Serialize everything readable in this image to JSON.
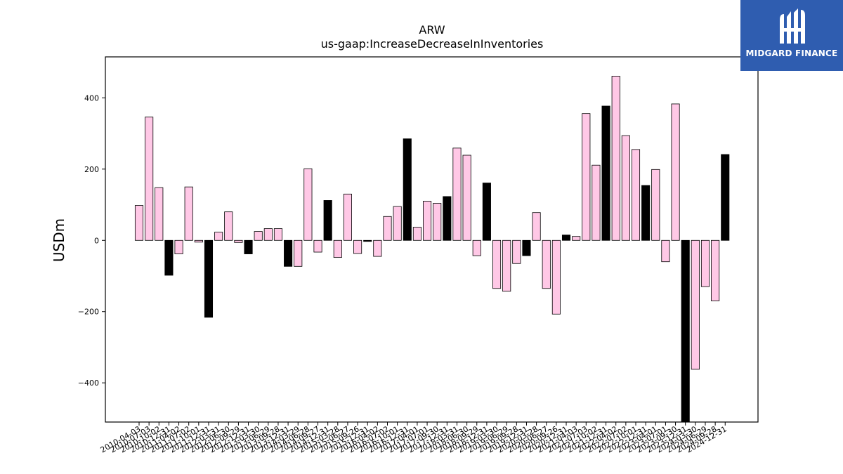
{
  "logo": {
    "text": "MIDGARD FINANCE",
    "icon": "midgard-m-logo-icon",
    "background": "#2f5db0"
  },
  "colors": {
    "positive": "#ffc8e6",
    "negative": "#ffc8e6",
    "highlight": "#000000",
    "edge": "#000000"
  },
  "chart_data": {
    "type": "bar",
    "title": "ARW",
    "subtitle": "us-gaap:IncreaseDecreaseInInventories",
    "xlabel": "",
    "ylabel": "USDm",
    "ylim": [
      -510,
      515
    ],
    "yticks": [
      -400,
      -200,
      0,
      200,
      400
    ],
    "grid": false,
    "categories": [
      "2010-04-03",
      "2010-07-03",
      "2010-10-02",
      "2010-12-31",
      "2011-04-02",
      "2011-07-02",
      "2011-10-01",
      "2011-12-31",
      "2012-03-31",
      "2012-06-30",
      "2012-09-29",
      "2012-12-31",
      "2013-03-30",
      "2013-06-29",
      "2013-09-28",
      "2013-12-31",
      "2014-03-29",
      "2014-06-28",
      "2014-09-27",
      "2014-12-31",
      "2015-03-28",
      "2015-06-27",
      "2015-09-26",
      "2015-12-31",
      "2016-04-02",
      "2016-07-02",
      "2016-10-01",
      "2016-12-31",
      "2017-04-01",
      "2017-07-01",
      "2017-09-30",
      "2017-12-31",
      "2018-03-31",
      "2018-06-30",
      "2018-09-29",
      "2018-12-31",
      "2019-03-30",
      "2019-06-29",
      "2019-09-28",
      "2019-12-31",
      "2020-03-28",
      "2020-06-27",
      "2020-09-26",
      "2020-12-31",
      "2021-04-03",
      "2021-07-03",
      "2021-10-02",
      "2021-12-31",
      "2022-04-02",
      "2022-07-02",
      "2022-10-01",
      "2022-12-31",
      "2023-04-01",
      "2023-07-01",
      "2023-09-30",
      "2023-12-31",
      "2024-03-30",
      "2024-06-29",
      "2024-09-28",
      "2024-12-31"
    ],
    "values": [
      98,
      346,
      148,
      -98,
      -38,
      150,
      -5,
      -216,
      23,
      80,
      -6,
      -38,
      25,
      33,
      33,
      -73,
      -73,
      201,
      -33,
      112,
      -48,
      130,
      -37,
      -3,
      -45,
      67,
      95,
      285,
      37,
      110,
      104,
      123,
      259,
      239,
      -43,
      161,
      -135,
      -143,
      -65,
      -43,
      78,
      -135,
      -207,
      15,
      11,
      356,
      211,
      377,
      461,
      294,
      255,
      154,
      199,
      -60,
      383,
      -510,
      -362,
      -130,
      -170,
      241
    ],
    "highlight": [
      false,
      false,
      false,
      true,
      false,
      false,
      false,
      true,
      false,
      false,
      false,
      true,
      false,
      false,
      false,
      true,
      false,
      false,
      false,
      true,
      false,
      false,
      false,
      true,
      false,
      false,
      false,
      true,
      false,
      false,
      false,
      true,
      false,
      false,
      false,
      true,
      false,
      false,
      false,
      true,
      false,
      false,
      false,
      true,
      false,
      false,
      false,
      true,
      false,
      false,
      false,
      true,
      false,
      false,
      false,
      true,
      false,
      false,
      false,
      true
    ]
  }
}
